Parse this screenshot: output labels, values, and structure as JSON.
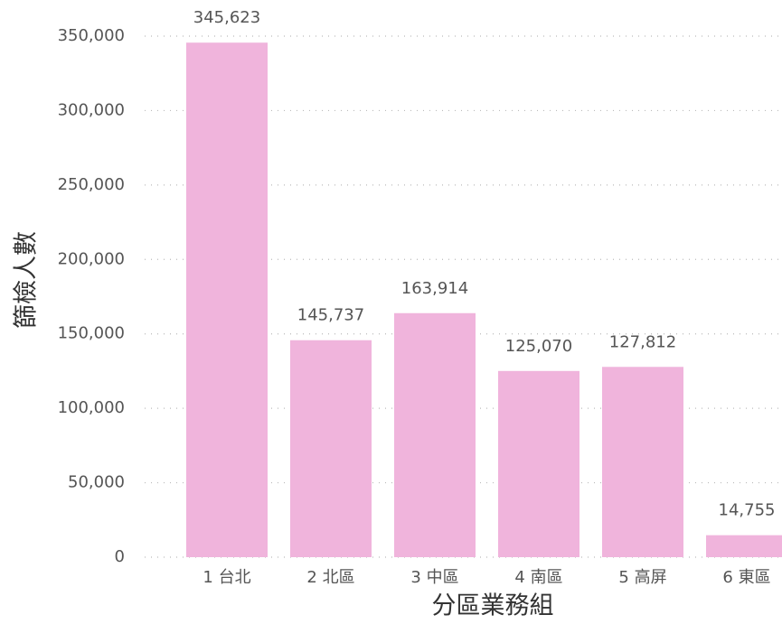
{
  "chart_data": {
    "type": "bar",
    "xlabel": "分區業務組",
    "ylabel": "篩檢人數",
    "categories": [
      "1 台北",
      "2 北區",
      "3 中區",
      "4 南區",
      "5 高屏",
      "6 東區"
    ],
    "values": [
      345623,
      145737,
      163914,
      125070,
      127812,
      14755
    ],
    "value_labels": [
      "345,623",
      "145,737",
      "163,914",
      "125,070",
      "127,812",
      "14,755"
    ],
    "color": "#f0b4dc",
    "ylim": [
      0,
      350000
    ],
    "yticks": [
      0,
      {
        "value": 50000,
        "label": "50,000"
      },
      {
        "value": 100000,
        "label": "100,000"
      },
      {
        "value": 150000,
        "label": "150,000"
      },
      {
        "value": 200000,
        "label": "200,000"
      },
      {
        "value": 250000,
        "label": "250,000"
      },
      {
        "value": 300000,
        "label": "300,000"
      },
      {
        "value": 350000,
        "label": "350,000"
      }
    ],
    "grid": true
  }
}
